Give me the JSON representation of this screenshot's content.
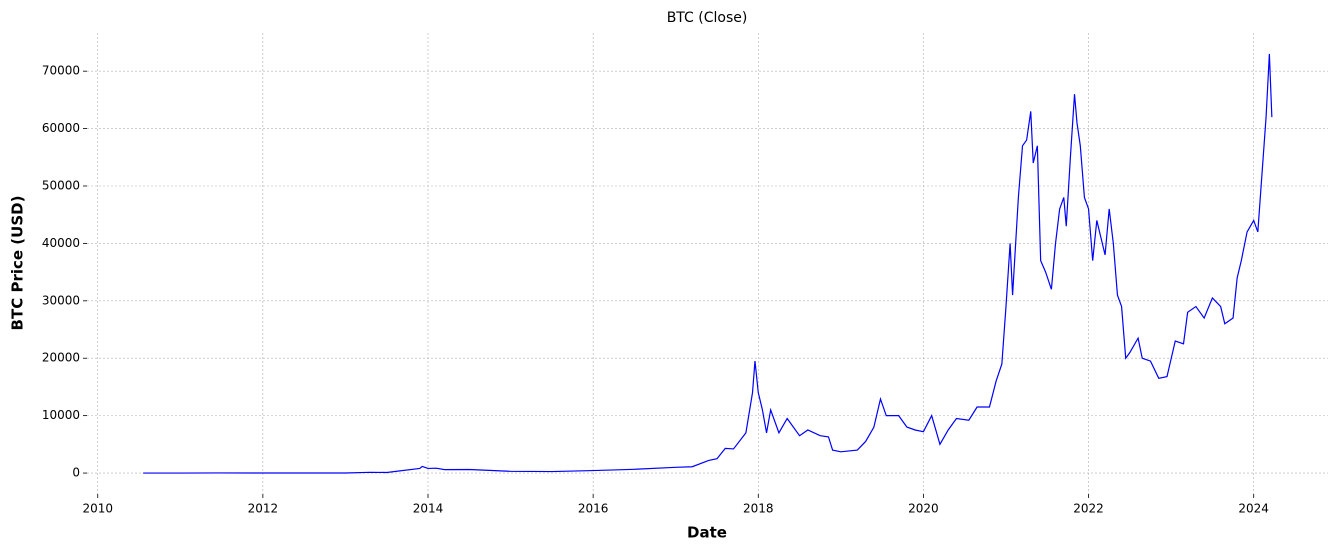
{
  "chart_data": {
    "type": "line",
    "title": "BTC (Close)",
    "x_label": "Date",
    "y_label": "BTC Price (USD)",
    "xlim": [
      2009.87,
      2024.9
    ],
    "ylim": [
      -3650,
      76650
    ],
    "xticks": [
      2010,
      2012,
      2014,
      2016,
      2018,
      2020,
      2022,
      2024
    ],
    "yticks": [
      0,
      10000,
      20000,
      30000,
      40000,
      50000,
      60000,
      70000
    ],
    "grid": true,
    "series": [
      {
        "name": "Close",
        "color": "#0000ff",
        "x": [
          2010.55,
          2011.0,
          2011.45,
          2012.0,
          2013.0,
          2013.3,
          2013.5,
          2013.9,
          2013.93,
          2014.0,
          2014.1,
          2014.2,
          2014.5,
          2015.0,
          2015.5,
          2016.0,
          2016.5,
          2017.0,
          2017.2,
          2017.4,
          2017.5,
          2017.6,
          2017.7,
          2017.85,
          2017.93,
          2017.96,
          2018.0,
          2018.05,
          2018.1,
          2018.15,
          2018.25,
          2018.35,
          2018.5,
          2018.6,
          2018.75,
          2018.85,
          2018.9,
          2019.0,
          2019.2,
          2019.3,
          2019.4,
          2019.48,
          2019.55,
          2019.7,
          2019.8,
          2019.9,
          2020.0,
          2020.1,
          2020.2,
          2020.3,
          2020.4,
          2020.55,
          2020.65,
          2020.8,
          2020.88,
          2020.95,
          2021.0,
          2021.05,
          2021.08,
          2021.15,
          2021.2,
          2021.25,
          2021.3,
          2021.33,
          2021.38,
          2021.42,
          2021.48,
          2021.55,
          2021.6,
          2021.65,
          2021.7,
          2021.73,
          2021.78,
          2021.83,
          2021.86,
          2021.9,
          2021.95,
          2022.0,
          2022.05,
          2022.1,
          2022.2,
          2022.25,
          2022.3,
          2022.35,
          2022.4,
          2022.45,
          2022.5,
          2022.6,
          2022.65,
          2022.75,
          2022.85,
          2022.95,
          2023.05,
          2023.15,
          2023.2,
          2023.3,
          2023.4,
          2023.5,
          2023.6,
          2023.65,
          2023.75,
          2023.8,
          2023.85,
          2023.92,
          2024.0,
          2024.05,
          2024.1,
          2024.15,
          2024.19,
          2024.22
        ],
        "values": [
          0.1,
          0.3,
          15,
          5,
          13,
          130,
          100,
          800,
          1150,
          800,
          850,
          600,
          620,
          300,
          260,
          430,
          650,
          1000,
          1100,
          2200,
          2500,
          4300,
          4200,
          7000,
          14000,
          19500,
          14000,
          11000,
          7000,
          11000,
          7000,
          9500,
          6500,
          7500,
          6500,
          6300,
          4000,
          3700,
          4000,
          5500,
          8000,
          12900,
          10000,
          10000,
          8000,
          7500,
          7200,
          10000,
          5000,
          7500,
          9500,
          9200,
          11500,
          11500,
          16000,
          19000,
          29000,
          40000,
          31000,
          48000,
          57000,
          58000,
          63000,
          54000,
          57000,
          37000,
          35000,
          32000,
          40000,
          46000,
          48000,
          43000,
          55000,
          66000,
          61000,
          57000,
          48000,
          46000,
          37000,
          44000,
          38000,
          46000,
          40000,
          31000,
          29000,
          20000,
          21000,
          23500,
          20000,
          19500,
          16500,
          16800,
          23000,
          22500,
          28000,
          29000,
          27000,
          30500,
          29000,
          26000,
          27000,
          34000,
          37000,
          42000,
          44000,
          42000,
          52000,
          62000,
          73000,
          62000
        ]
      }
    ]
  }
}
